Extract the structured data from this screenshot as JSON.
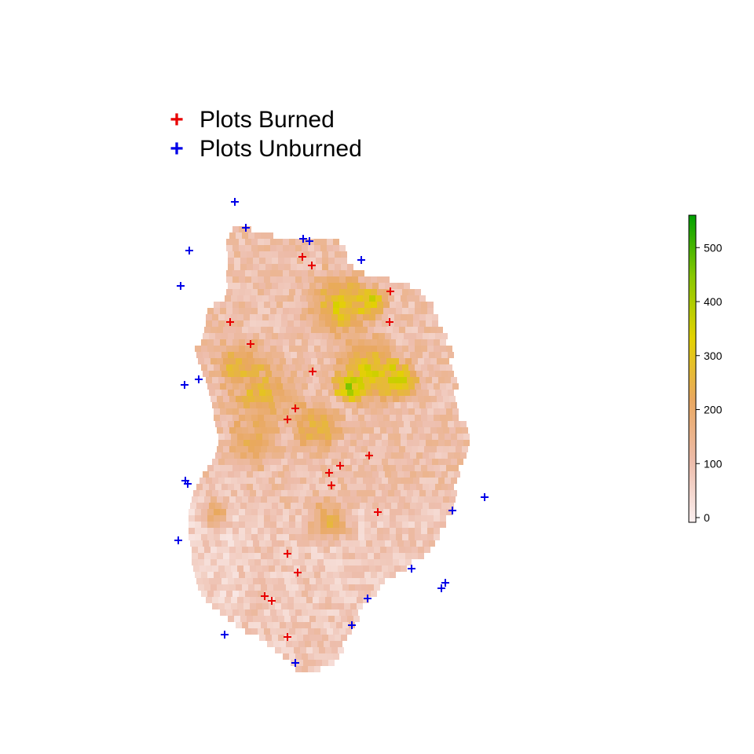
{
  "legend": {
    "items": [
      {
        "label": "Plots Burned",
        "color": "#e80000",
        "symbol": "+"
      },
      {
        "label": "Plots Unburned",
        "color": "#0000e8",
        "symbol": "+"
      }
    ]
  },
  "colorbar": {
    "min": 0,
    "max": 560,
    "ticks": [
      0,
      100,
      200,
      300,
      400,
      500
    ],
    "tick_labels": [
      "0",
      "100",
      "200",
      "300",
      "400",
      "500"
    ],
    "colors": [
      "#fbf0f0",
      "#edbcaa",
      "#e9a860",
      "#e3d200",
      "#88c800",
      "#00a000"
    ]
  },
  "colors": {
    "burned": "#e80000",
    "unburned": "#0000e8",
    "background": "#ffffff"
  }
}
